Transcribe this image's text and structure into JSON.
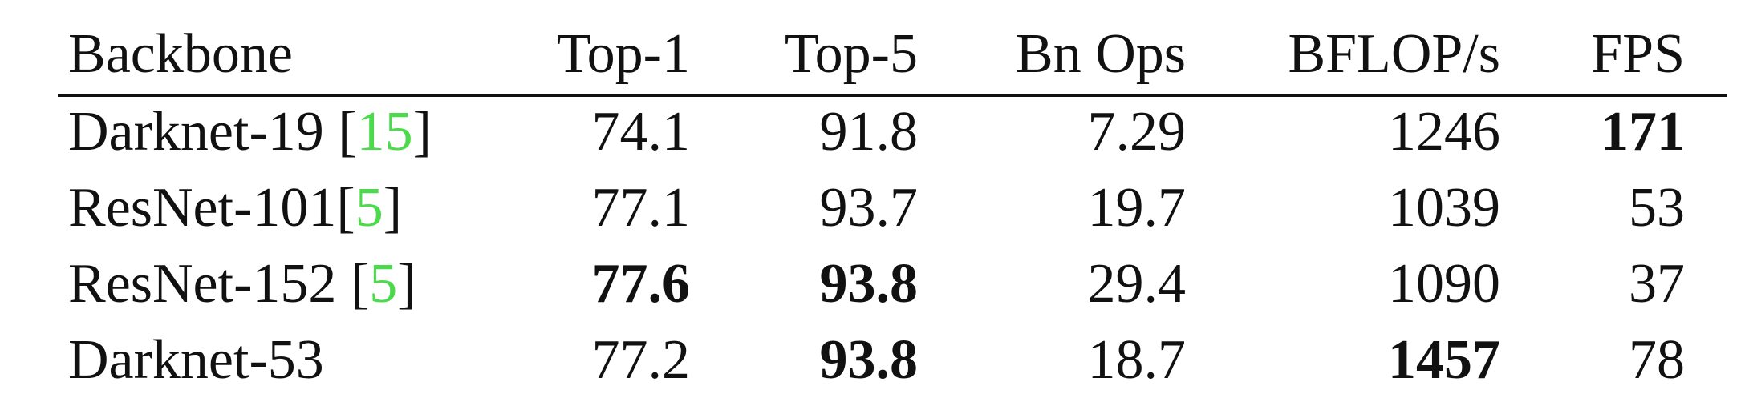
{
  "table": {
    "headers": [
      "Backbone",
      "Top-1",
      "Top-5",
      "Bn Ops",
      "BFLOP/s",
      "FPS"
    ],
    "rows": [
      {
        "backbone": "Darknet-19 ",
        "citation_open": "[",
        "citation": "15",
        "citation_close": "]",
        "top1": "74.1",
        "top5": "91.8",
        "bn_ops": "7.29",
        "bflops": "1246",
        "fps": "171",
        "bold": [
          "fps"
        ]
      },
      {
        "backbone": "ResNet-101",
        "citation_open": "[",
        "citation": "5",
        "citation_close": "]",
        "top1": "77.1",
        "top5": "93.7",
        "bn_ops": "19.7",
        "bflops": "1039",
        "fps": "53",
        "bold": []
      },
      {
        "backbone": "ResNet-152 ",
        "citation_open": "[",
        "citation": "5",
        "citation_close": "]",
        "top1": "77.6",
        "top5": "93.8",
        "bn_ops": "29.4",
        "bflops": "1090",
        "fps": "37",
        "bold": [
          "top1",
          "top5"
        ]
      },
      {
        "backbone": "Darknet-53",
        "citation_open": "",
        "citation": "",
        "citation_close": "",
        "top1": "77.2",
        "top5": "93.8",
        "bn_ops": "18.7",
        "bflops": "1457",
        "fps": "78",
        "bold": [
          "top5",
          "bflops"
        ]
      }
    ],
    "colors": {
      "text": "#111111",
      "citation": "#4cd94c",
      "rule": "#111111"
    }
  }
}
